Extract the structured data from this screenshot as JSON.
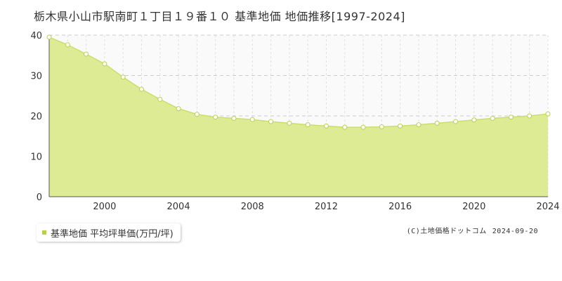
{
  "title": "栃木県小山市駅南町１丁目１９番１０ 基準地価 地価推移[1997-2024]",
  "legend": {
    "label": "基準地価 平均坪単価(万円/坪)"
  },
  "credit": {
    "source": "(C)土地価格ドットコム",
    "date": "2024-09-20"
  },
  "colors": {
    "area": "#dceb94",
    "line": "#c9e06a",
    "point_fill": "#ffffff",
    "point_stroke": "#b8d24a",
    "legend_swatch": "#b5d33d"
  },
  "chart_data": {
    "type": "area",
    "title": "",
    "xlabel": "",
    "ylabel": "",
    "xlim": [
      1997,
      2024
    ],
    "ylim": [
      0,
      40
    ],
    "grid": true,
    "x_ticks": [
      2000,
      2004,
      2008,
      2012,
      2016,
      2020,
      2024
    ],
    "y_ticks": [
      0,
      10,
      20,
      30,
      40
    ],
    "series": [
      {
        "x": [
          1997,
          1998,
          1999,
          2000,
          2001,
          2002,
          2003,
          2004,
          2005,
          2006,
          2007,
          2008,
          2009,
          2010,
          2011,
          2012,
          2013,
          2014,
          2015,
          2016,
          2017,
          2018,
          2019,
          2020,
          2021,
          2022,
          2023,
          2024
        ],
        "values": [
          39.5,
          37.6,
          35.3,
          32.9,
          29.6,
          26.6,
          24.1,
          21.8,
          20.4,
          19.7,
          19.4,
          19.1,
          18.6,
          18.2,
          17.8,
          17.5,
          17.2,
          17.2,
          17.3,
          17.5,
          17.8,
          18.2,
          18.6,
          19.0,
          19.4,
          19.7,
          20.0,
          20.5
        ]
      }
    ]
  }
}
